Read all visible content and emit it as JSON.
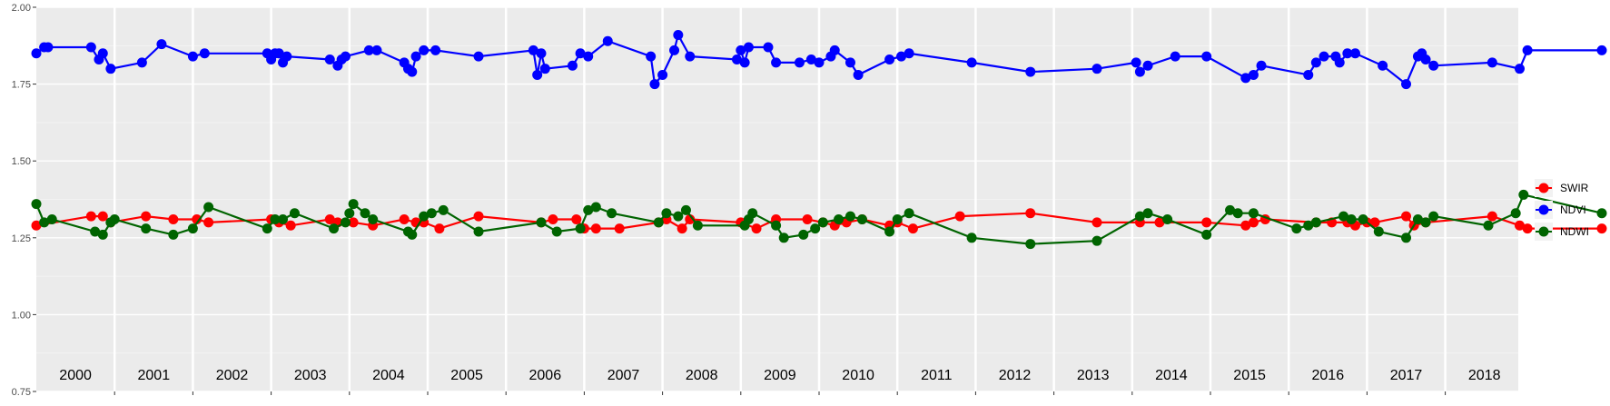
{
  "chart_data": {
    "type": "line",
    "title": "",
    "xlabel": "",
    "ylabel": "",
    "xlim": [
      2000,
      2019
    ],
    "ylim": [
      0.75,
      2.0
    ],
    "y_ticks": [
      "0.75",
      "1.00",
      "1.25",
      "1.50",
      "1.75",
      "2.00"
    ],
    "y_tick_values": [
      0.75,
      1.0,
      1.25,
      1.5,
      1.75,
      2.0
    ],
    "year_labels": [
      "2000",
      "2001",
      "2002",
      "2003",
      "2004",
      "2005",
      "2006",
      "2007",
      "2008",
      "2009",
      "2010",
      "2011",
      "2012",
      "2013",
      "2014",
      "2015",
      "2016",
      "2017",
      "2018"
    ],
    "grid": true,
    "legend_position": "right",
    "legend": [
      {
        "name": "SWIR",
        "color": "#ff0000"
      },
      {
        "name": "NDVI",
        "color": "#0000ff"
      },
      {
        "name": "NDWI",
        "color": "#006400"
      }
    ],
    "series": [
      {
        "name": "NDVI",
        "color": "#0000ff",
        "points": [
          [
            2000.0,
            1.85
          ],
          [
            2000.1,
            1.87
          ],
          [
            2000.15,
            1.87
          ],
          [
            2000.7,
            1.87
          ],
          [
            2000.8,
            1.83
          ],
          [
            2000.85,
            1.85
          ],
          [
            2000.95,
            1.8
          ],
          [
            2001.35,
            1.82
          ],
          [
            2001.6,
            1.88
          ],
          [
            2002.0,
            1.84
          ],
          [
            2002.15,
            1.85
          ],
          [
            2002.95,
            1.85
          ],
          [
            2003.0,
            1.83
          ],
          [
            2003.05,
            1.85
          ],
          [
            2003.1,
            1.85
          ],
          [
            2003.15,
            1.82
          ],
          [
            2003.2,
            1.84
          ],
          [
            2003.75,
            1.83
          ],
          [
            2003.85,
            1.81
          ],
          [
            2003.9,
            1.83
          ],
          [
            2003.95,
            1.84
          ],
          [
            2004.25,
            1.86
          ],
          [
            2004.35,
            1.86
          ],
          [
            2004.7,
            1.82
          ],
          [
            2004.75,
            1.8
          ],
          [
            2004.8,
            1.79
          ],
          [
            2004.85,
            1.84
          ],
          [
            2004.95,
            1.86
          ],
          [
            2005.1,
            1.86
          ],
          [
            2005.65,
            1.84
          ],
          [
            2006.35,
            1.86
          ],
          [
            2006.4,
            1.78
          ],
          [
            2006.45,
            1.85
          ],
          [
            2006.5,
            1.8
          ],
          [
            2006.85,
            1.81
          ],
          [
            2006.95,
            1.85
          ],
          [
            2007.05,
            1.84
          ],
          [
            2007.3,
            1.89
          ],
          [
            2007.85,
            1.84
          ],
          [
            2007.9,
            1.75
          ],
          [
            2008.0,
            1.78
          ],
          [
            2008.15,
            1.86
          ],
          [
            2008.2,
            1.91
          ],
          [
            2008.35,
            1.84
          ],
          [
            2008.95,
            1.83
          ],
          [
            2009.0,
            1.86
          ],
          [
            2009.05,
            1.82
          ],
          [
            2009.1,
            1.87
          ],
          [
            2009.35,
            1.87
          ],
          [
            2009.45,
            1.82
          ],
          [
            2009.75,
            1.82
          ],
          [
            2009.9,
            1.83
          ],
          [
            2010.0,
            1.82
          ],
          [
            2010.15,
            1.84
          ],
          [
            2010.2,
            1.86
          ],
          [
            2010.4,
            1.82
          ],
          [
            2010.5,
            1.78
          ],
          [
            2010.9,
            1.83
          ],
          [
            2011.05,
            1.84
          ],
          [
            2011.15,
            1.85
          ],
          [
            2011.95,
            1.82
          ],
          [
            2012.7,
            1.79
          ],
          [
            2013.55,
            1.8
          ],
          [
            2014.05,
            1.82
          ],
          [
            2014.1,
            1.79
          ],
          [
            2014.2,
            1.81
          ],
          [
            2014.55,
            1.84
          ],
          [
            2014.95,
            1.84
          ],
          [
            2015.45,
            1.77
          ],
          [
            2015.55,
            1.78
          ],
          [
            2015.65,
            1.81
          ],
          [
            2016.25,
            1.78
          ],
          [
            2016.35,
            1.82
          ],
          [
            2016.45,
            1.84
          ],
          [
            2016.6,
            1.84
          ],
          [
            2016.65,
            1.82
          ],
          [
            2016.75,
            1.85
          ],
          [
            2016.85,
            1.85
          ],
          [
            2017.2,
            1.81
          ],
          [
            2017.5,
            1.75
          ],
          [
            2017.65,
            1.84
          ],
          [
            2017.7,
            1.85
          ],
          [
            2017.75,
            1.83
          ],
          [
            2017.85,
            1.81
          ],
          [
            2018.6,
            1.82
          ],
          [
            2018.95,
            1.8
          ],
          [
            2019.05,
            1.86
          ],
          [
            2020.0,
            1.86
          ]
        ]
      },
      {
        "name": "SWIR",
        "color": "#ff0000",
        "points": [
          [
            2000.0,
            1.29
          ],
          [
            2000.7,
            1.32
          ],
          [
            2000.85,
            1.32
          ],
          [
            2000.95,
            1.3
          ],
          [
            2001.4,
            1.32
          ],
          [
            2001.75,
            1.31
          ],
          [
            2002.05,
            1.31
          ],
          [
            2002.2,
            1.3
          ],
          [
            2003.0,
            1.31
          ],
          [
            2003.1,
            1.3
          ],
          [
            2003.25,
            1.29
          ],
          [
            2003.75,
            1.31
          ],
          [
            2003.85,
            1.3
          ],
          [
            2004.05,
            1.3
          ],
          [
            2004.3,
            1.29
          ],
          [
            2004.7,
            1.31
          ],
          [
            2004.85,
            1.3
          ],
          [
            2004.95,
            1.3
          ],
          [
            2005.15,
            1.28
          ],
          [
            2005.65,
            1.32
          ],
          [
            2006.45,
            1.3
          ],
          [
            2006.6,
            1.31
          ],
          [
            2006.9,
            1.31
          ],
          [
            2007.0,
            1.28
          ],
          [
            2007.15,
            1.28
          ],
          [
            2007.45,
            1.28
          ],
          [
            2007.95,
            1.3
          ],
          [
            2008.05,
            1.31
          ],
          [
            2008.25,
            1.28
          ],
          [
            2008.35,
            1.31
          ],
          [
            2009.0,
            1.3
          ],
          [
            2009.2,
            1.28
          ],
          [
            2009.45,
            1.31
          ],
          [
            2009.85,
            1.31
          ],
          [
            2010.05,
            1.3
          ],
          [
            2010.2,
            1.29
          ],
          [
            2010.35,
            1.3
          ],
          [
            2010.55,
            1.31
          ],
          [
            2010.9,
            1.29
          ],
          [
            2011.0,
            1.3
          ],
          [
            2011.2,
            1.28
          ],
          [
            2011.8,
            1.32
          ],
          [
            2012.7,
            1.33
          ],
          [
            2013.55,
            1.3
          ],
          [
            2014.1,
            1.3
          ],
          [
            2014.35,
            1.3
          ],
          [
            2014.95,
            1.3
          ],
          [
            2015.45,
            1.29
          ],
          [
            2015.55,
            1.3
          ],
          [
            2015.7,
            1.31
          ],
          [
            2016.35,
            1.3
          ],
          [
            2016.55,
            1.3
          ],
          [
            2016.75,
            1.3
          ],
          [
            2016.85,
            1.29
          ],
          [
            2017.0,
            1.3
          ],
          [
            2017.1,
            1.3
          ],
          [
            2017.5,
            1.32
          ],
          [
            2017.6,
            1.29
          ],
          [
            2017.75,
            1.3
          ],
          [
            2018.6,
            1.32
          ],
          [
            2018.95,
            1.29
          ],
          [
            2019.05,
            1.28
          ],
          [
            2020.0,
            1.28
          ]
        ]
      },
      {
        "name": "NDWI",
        "color": "#006400",
        "points": [
          [
            2000.0,
            1.36
          ],
          [
            2000.1,
            1.3
          ],
          [
            2000.2,
            1.31
          ],
          [
            2000.75,
            1.27
          ],
          [
            2000.85,
            1.26
          ],
          [
            2000.95,
            1.3
          ],
          [
            2001.0,
            1.31
          ],
          [
            2001.4,
            1.28
          ],
          [
            2001.75,
            1.26
          ],
          [
            2002.0,
            1.28
          ],
          [
            2002.2,
            1.35
          ],
          [
            2002.95,
            1.28
          ],
          [
            2003.05,
            1.31
          ],
          [
            2003.15,
            1.31
          ],
          [
            2003.3,
            1.33
          ],
          [
            2003.8,
            1.28
          ],
          [
            2003.95,
            1.3
          ],
          [
            2004.0,
            1.33
          ],
          [
            2004.05,
            1.36
          ],
          [
            2004.2,
            1.33
          ],
          [
            2004.3,
            1.31
          ],
          [
            2004.75,
            1.27
          ],
          [
            2004.8,
            1.26
          ],
          [
            2004.95,
            1.32
          ],
          [
            2005.05,
            1.33
          ],
          [
            2005.2,
            1.34
          ],
          [
            2005.65,
            1.27
          ],
          [
            2006.45,
            1.3
          ],
          [
            2006.65,
            1.27
          ],
          [
            2006.95,
            1.28
          ],
          [
            2007.05,
            1.34
          ],
          [
            2007.15,
            1.35
          ],
          [
            2007.35,
            1.33
          ],
          [
            2007.95,
            1.3
          ],
          [
            2008.05,
            1.33
          ],
          [
            2008.2,
            1.32
          ],
          [
            2008.3,
            1.34
          ],
          [
            2008.45,
            1.29
          ],
          [
            2009.05,
            1.29
          ],
          [
            2009.1,
            1.31
          ],
          [
            2009.15,
            1.33
          ],
          [
            2009.45,
            1.29
          ],
          [
            2009.55,
            1.25
          ],
          [
            2009.8,
            1.26
          ],
          [
            2009.95,
            1.28
          ],
          [
            2010.05,
            1.3
          ],
          [
            2010.25,
            1.31
          ],
          [
            2010.4,
            1.32
          ],
          [
            2010.55,
            1.31
          ],
          [
            2010.9,
            1.27
          ],
          [
            2011.0,
            1.31
          ],
          [
            2011.15,
            1.33
          ],
          [
            2011.95,
            1.25
          ],
          [
            2012.7,
            1.23
          ],
          [
            2013.55,
            1.24
          ],
          [
            2014.1,
            1.32
          ],
          [
            2014.2,
            1.33
          ],
          [
            2014.45,
            1.31
          ],
          [
            2014.95,
            1.26
          ],
          [
            2015.25,
            1.34
          ],
          [
            2015.35,
            1.33
          ],
          [
            2015.55,
            1.33
          ],
          [
            2016.1,
            1.28
          ],
          [
            2016.25,
            1.29
          ],
          [
            2016.35,
            1.3
          ],
          [
            2016.7,
            1.32
          ],
          [
            2016.8,
            1.31
          ],
          [
            2016.95,
            1.31
          ],
          [
            2017.15,
            1.27
          ],
          [
            2017.5,
            1.25
          ],
          [
            2017.65,
            1.31
          ],
          [
            2017.75,
            1.3
          ],
          [
            2017.85,
            1.32
          ],
          [
            2018.55,
            1.29
          ],
          [
            2018.9,
            1.33
          ],
          [
            2019.0,
            1.39
          ],
          [
            2020.0,
            1.33
          ]
        ]
      }
    ]
  }
}
